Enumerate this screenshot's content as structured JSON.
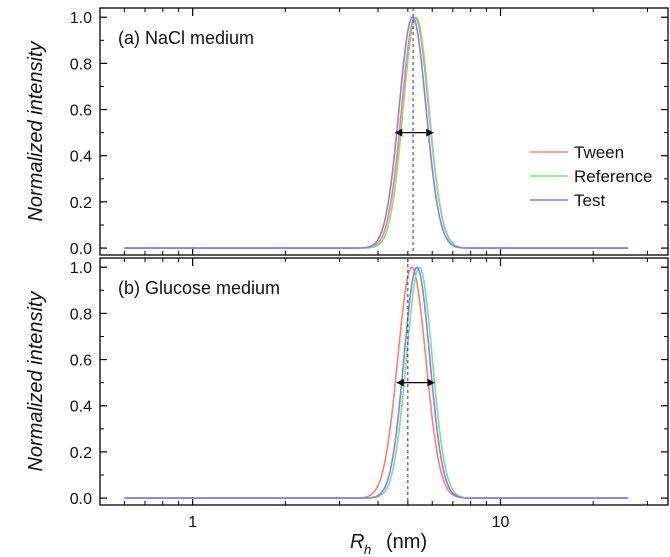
{
  "colors": {
    "tween": "#ff7f6e",
    "reference": "#7fe07f",
    "test": "#7f7fff",
    "frame": "#000000",
    "reference_line": "#333333"
  },
  "chart_data": [
    {
      "type": "line",
      "title": "(a) NaCl medium",
      "xlabel": "",
      "ylabel": "Normalized intensity",
      "xscale": "log",
      "xlim": [
        0.5,
        35
      ],
      "ylim": [
        -0.03,
        1.04
      ],
      "xticks": [
        1,
        10
      ],
      "xtick_labels": [
        "",
        ""
      ],
      "yticks": [
        0.0,
        0.2,
        0.4,
        0.6,
        0.8,
        1.0
      ],
      "ytick_labels": [
        "0.0",
        "0.2",
        "0.4",
        "0.6",
        "0.8",
        "1.0"
      ],
      "legend": {
        "position": "right",
        "entries": [
          "Tween",
          "Reference",
          "Test"
        ]
      },
      "reference_line_x": 5.2,
      "fwhm_arrow": {
        "from": 4.55,
        "to": 6.05,
        "y": 0.5
      },
      "x_range": [
        0.6,
        26
      ],
      "series": [
        {
          "name": "Tween",
          "peak_x": 5.28,
          "sigma_log": 0.125
        },
        {
          "name": "Reference",
          "peak_x": 5.32,
          "sigma_log": 0.12
        },
        {
          "name": "Test",
          "peak_x": 5.18,
          "sigma_log": 0.125
        }
      ]
    },
    {
      "type": "line",
      "title": "(b) Glucose medium",
      "xlabel": "R_h (nm)",
      "ylabel": "Normalized intensity",
      "xscale": "log",
      "xlim": [
        0.5,
        35
      ],
      "ylim": [
        -0.03,
        1.04
      ],
      "xticks": [
        1,
        10
      ],
      "xtick_labels": [
        "1",
        "10"
      ],
      "yticks": [
        0.0,
        0.2,
        0.4,
        0.6,
        0.8,
        1.0
      ],
      "ytick_labels": [
        "0.0",
        "0.2",
        "0.4",
        "0.6",
        "0.8",
        "1.0"
      ],
      "legend": {
        "position": "none",
        "entries": []
      },
      "reference_line_x": 5.0,
      "fwhm_arrow": {
        "from": 4.6,
        "to": 6.1,
        "y": 0.5
      },
      "x_range": [
        0.6,
        26
      ],
      "series": [
        {
          "name": "Tween",
          "peak_x": 5.15,
          "sigma_log": 0.13
        },
        {
          "name": "Reference",
          "peak_x": 5.45,
          "sigma_log": 0.12
        },
        {
          "name": "Test",
          "peak_x": 5.35,
          "sigma_log": 0.12
        }
      ]
    }
  ],
  "xaxis_title": {
    "main": "R",
    "sub": "h",
    "unit": "(nm)"
  }
}
